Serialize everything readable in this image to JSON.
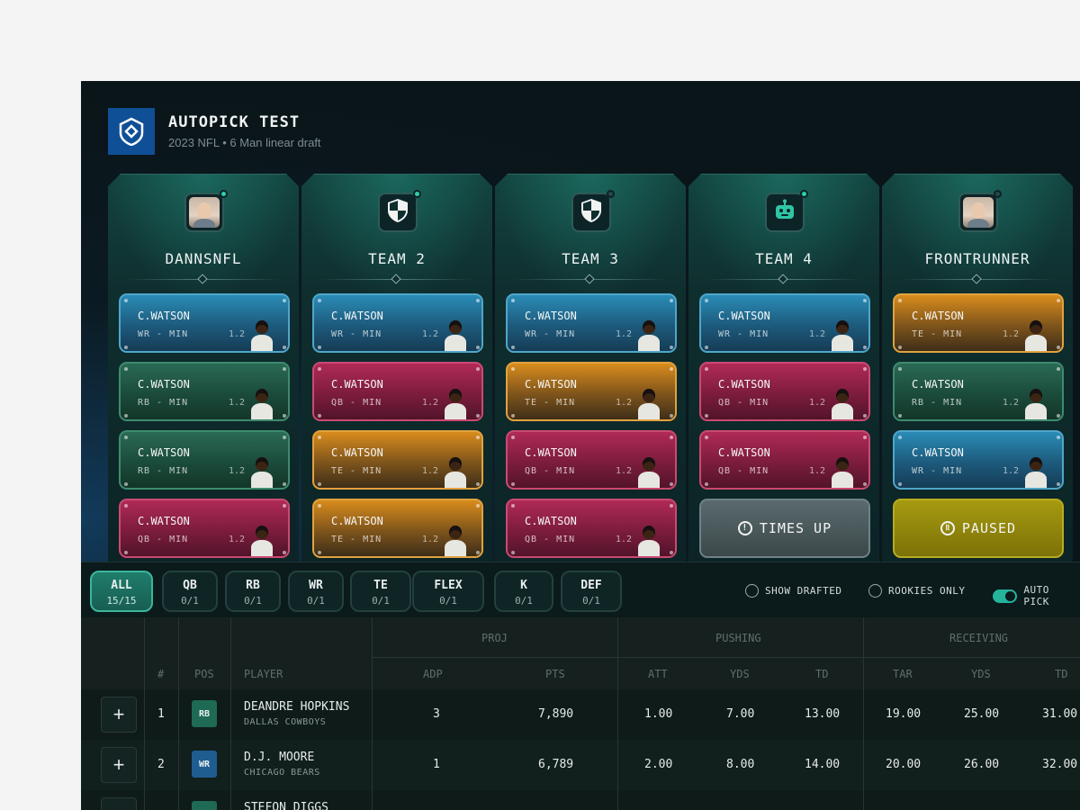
{
  "header": {
    "title": "AUTOPICK TEST",
    "subtitle": "2023 NFL • 6 Man linear draft"
  },
  "teams": [
    {
      "name": "DANNSNFL",
      "avatar": "person-photo",
      "online": true,
      "slots": [
        {
          "player": "C.WATSON",
          "pos": "WR - MIN",
          "pick": "1.2",
          "type": "WR"
        },
        {
          "player": "C.WATSON",
          "pos": "RB - MIN",
          "pick": "1.2",
          "type": "RB"
        },
        {
          "player": "C.WATSON",
          "pos": "RB - MIN",
          "pick": "1.2",
          "type": "RB"
        },
        {
          "player": "C.WATSON",
          "pos": "QB - MIN",
          "pick": "1.2",
          "type": "QB"
        }
      ]
    },
    {
      "name": "TEAM 2",
      "avatar": "shield-icon",
      "online": true,
      "slots": [
        {
          "player": "C.WATSON",
          "pos": "WR - MIN",
          "pick": "1.2",
          "type": "WR"
        },
        {
          "player": "C.WATSON",
          "pos": "QB - MIN",
          "pick": "1.2",
          "type": "QB"
        },
        {
          "player": "C.WATSON",
          "pos": "TE - MIN",
          "pick": "1.2",
          "type": "TE"
        },
        {
          "player": "C.WATSON",
          "pos": "TE - MIN",
          "pick": "1.2",
          "type": "TE"
        }
      ]
    },
    {
      "name": "TEAM 3",
      "avatar": "shield-icon",
      "online": false,
      "slots": [
        {
          "player": "C.WATSON",
          "pos": "WR - MIN",
          "pick": "1.2",
          "type": "WR"
        },
        {
          "player": "C.WATSON",
          "pos": "TE - MIN",
          "pick": "1.2",
          "type": "TE"
        },
        {
          "player": "C.WATSON",
          "pos": "QB - MIN",
          "pick": "1.2",
          "type": "QB"
        },
        {
          "player": "C.WATSON",
          "pos": "QB - MIN",
          "pick": "1.2",
          "type": "QB"
        }
      ]
    },
    {
      "name": "TEAM 4",
      "avatar": "robot-icon",
      "online": true,
      "slots": [
        {
          "player": "C.WATSON",
          "pos": "WR - MIN",
          "pick": "1.2",
          "type": "WR"
        },
        {
          "player": "C.WATSON",
          "pos": "QB - MIN",
          "pick": "1.2",
          "type": "QB"
        },
        {
          "player": "C.WATSON",
          "pos": "QB - MIN",
          "pick": "1.2",
          "type": "QB"
        }
      ],
      "status": {
        "label": "TIMES UP",
        "icon": "alert-icon",
        "kind": "timesup"
      }
    },
    {
      "name": "FRONTRUNNER",
      "avatar": "person-photo",
      "online": false,
      "slots": [
        {
          "player": "C.WATSON",
          "pos": "TE - MIN",
          "pick": "1.2",
          "type": "TE"
        },
        {
          "player": "C.WATSON",
          "pos": "RB - MIN",
          "pick": "1.2",
          "type": "RB"
        },
        {
          "player": "C.WATSON",
          "pos": "WR - MIN",
          "pick": "1.2",
          "type": "WR"
        }
      ],
      "status": {
        "label": "PAUSED",
        "icon": "pause-icon",
        "kind": "paused"
      }
    }
  ],
  "filters": [
    {
      "label": "ALL",
      "count": "15/15",
      "active": true
    },
    {
      "label": "QB",
      "count": "0/1"
    },
    {
      "label": "RB",
      "count": "0/1"
    },
    {
      "label": "WR",
      "count": "0/1"
    },
    {
      "label": "TE",
      "count": "0/1"
    },
    {
      "label": "FLEX",
      "count": "0/1"
    },
    {
      "label": "K",
      "count": "0/1"
    },
    {
      "label": "DEF",
      "count": "0/1"
    }
  ],
  "options": {
    "show_drafted": "SHOW DRAFTED",
    "rookies_only": "ROOKIES ONLY",
    "auto_pick": "AUTO PICK",
    "auto_pick_on": true
  },
  "table": {
    "groups": {
      "proj": "PROJ",
      "pushing": "PUSHING",
      "receiving": "RECEIVING"
    },
    "columns": {
      "rank": "#",
      "pos": "POS",
      "player": "PLAYER",
      "adp": "ADP",
      "pts": "PTS",
      "att": "ATT",
      "p_yds": "YDS",
      "p_td": "TD",
      "tar": "TAR",
      "r_yds": "YDS",
      "r_td": "TD"
    },
    "rows": [
      {
        "rank": "1",
        "pos": "RB",
        "name": "DEANDRE HOPKINS",
        "team": "DALLAS COWBOYS",
        "adp": "3",
        "pts": "7,890",
        "att": "1.00",
        "p_yds": "7.00",
        "p_td": "13.00",
        "tar": "19.00",
        "r_yds": "25.00",
        "r_td": "31.00"
      },
      {
        "rank": "2",
        "pos": "WR",
        "name": "D.J. MOORE",
        "team": "CHICAGO BEARS",
        "adp": "1",
        "pts": "6,789",
        "att": "2.00",
        "p_yds": "8.00",
        "p_td": "14.00",
        "tar": "20.00",
        "r_yds": "26.00",
        "r_td": "32.00"
      },
      {
        "name": "STEFON DIGGS"
      }
    ],
    "add_label": "+"
  }
}
